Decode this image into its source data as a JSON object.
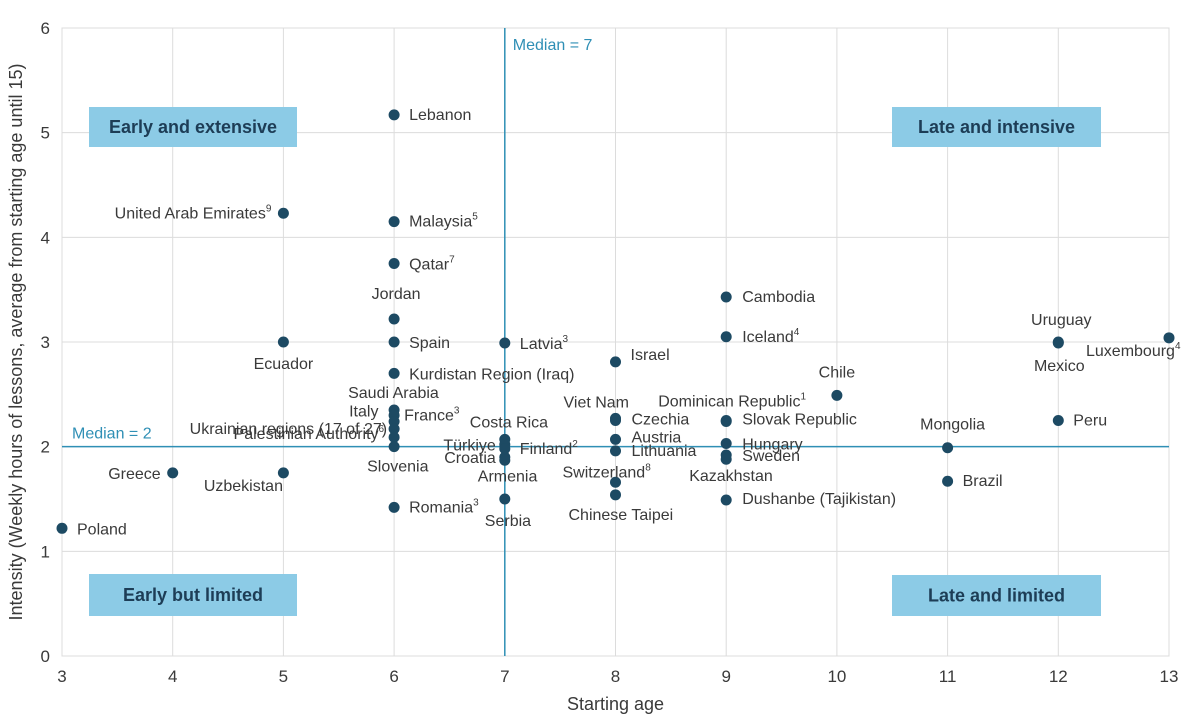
{
  "chart_data": {
    "type": "scatter",
    "xlabel": "Starting age",
    "ylabel": "Intensity (Weekly hours of lessons, average from starting age until 15)",
    "xlim": [
      3,
      13
    ],
    "ylim": [
      0,
      6
    ],
    "xticks": [
      3,
      4,
      5,
      6,
      7,
      8,
      9,
      10,
      11,
      12,
      13
    ],
    "yticks": [
      0,
      1,
      2,
      3,
      4,
      5,
      6
    ],
    "grid": true,
    "colors": {
      "point": "#1d4a63",
      "median_line": "#2f8fb5",
      "quadrant_box": "#8ccbe6",
      "grid": "#dcdcdc"
    },
    "medians": [
      {
        "axis": "x",
        "value": 7,
        "label": "Median = 7"
      },
      {
        "axis": "y",
        "value": 2,
        "label": "Median = 2"
      }
    ],
    "quadrants": [
      {
        "label": "Early and extensive",
        "position": "top-left"
      },
      {
        "label": "Late and intensive",
        "position": "top-right"
      },
      {
        "label": "Early but limited",
        "position": "bottom-left"
      },
      {
        "label": "Late and limited",
        "position": "bottom-right"
      }
    ],
    "points": [
      {
        "label": "Poland",
        "sup": "",
        "x": 3,
        "y": 1.22
      },
      {
        "label": "Greece",
        "sup": "",
        "x": 4,
        "y": 1.75
      },
      {
        "label": "United Arab Emirates",
        "sup": "9",
        "x": 5,
        "y": 4.23
      },
      {
        "label": "Ecuador",
        "sup": "",
        "x": 5,
        "y": 3.0
      },
      {
        "label": "Uzbekistan",
        "sup": "",
        "x": 5,
        "y": 1.75
      },
      {
        "label": "Lebanon",
        "sup": "",
        "x": 6,
        "y": 5.17
      },
      {
        "label": "Malaysia",
        "sup": "5",
        "x": 6,
        "y": 4.15
      },
      {
        "label": "Qatar",
        "sup": "7",
        "x": 6,
        "y": 3.75
      },
      {
        "label": "Jordan",
        "sup": "",
        "x": 6,
        "y": 3.22
      },
      {
        "label": "Spain",
        "sup": "",
        "x": 6,
        "y": 3.0
      },
      {
        "label": "Kurdistan Region (Iraq)",
        "sup": "",
        "x": 6,
        "y": 2.7
      },
      {
        "label": "Saudi Arabia",
        "sup": "",
        "x": 6,
        "y": 2.35
      },
      {
        "label": "Italy",
        "sup": "",
        "x": 6,
        "y": 2.3
      },
      {
        "label": "France",
        "sup": "3",
        "x": 6,
        "y": 2.24
      },
      {
        "label": "Ukrainian regions (17 of 27)",
        "sup": "",
        "x": 6,
        "y": 2.17
      },
      {
        "label": "Palestinian Authority",
        "sup": "6",
        "x": 6,
        "y": 2.09
      },
      {
        "label": "Slovenia",
        "sup": "",
        "x": 6,
        "y": 2.0
      },
      {
        "label": "Romania",
        "sup": "3",
        "x": 6,
        "y": 1.42
      },
      {
        "label": "Latvia",
        "sup": "3",
        "x": 7,
        "y": 2.99
      },
      {
        "label": "Costa Rica",
        "sup": "",
        "x": 7,
        "y": 2.07
      },
      {
        "label": "Türkiye",
        "sup": "",
        "x": 7,
        "y": 2.02
      },
      {
        "label": "Finland",
        "sup": "2",
        "x": 7,
        "y": 1.98
      },
      {
        "label": "Croatia",
        "sup": "",
        "x": 7,
        "y": 1.9
      },
      {
        "label": "Armenia",
        "sup": "",
        "x": 7,
        "y": 1.87
      },
      {
        "label": "Serbia",
        "sup": "",
        "x": 7,
        "y": 1.5
      },
      {
        "label": "Israel",
        "sup": "",
        "x": 8,
        "y": 2.81
      },
      {
        "label": "Viet Nam",
        "sup": "",
        "x": 8,
        "y": 2.27
      },
      {
        "label": "Czechia",
        "sup": "",
        "x": 8,
        "y": 2.25
      },
      {
        "label": "Austria",
        "sup": "",
        "x": 8,
        "y": 2.07
      },
      {
        "label": "Lithuania",
        "sup": "",
        "x": 8,
        "y": 1.96
      },
      {
        "label": "Switzerland",
        "sup": "8",
        "x": 8,
        "y": 1.66
      },
      {
        "label": "Chinese Taipei",
        "sup": "",
        "x": 8,
        "y": 1.54
      },
      {
        "label": "Cambodia",
        "sup": "",
        "x": 9,
        "y": 3.43
      },
      {
        "label": "Iceland",
        "sup": "4",
        "x": 9,
        "y": 3.05
      },
      {
        "label": "Dominican Republic",
        "sup": "1",
        "x": 9,
        "y": 2.25
      },
      {
        "label": "Slovak Republic",
        "sup": "",
        "x": 9,
        "y": 2.24
      },
      {
        "label": "Hungary",
        "sup": "",
        "x": 9,
        "y": 2.03
      },
      {
        "label": "Sweden",
        "sup": "",
        "x": 9,
        "y": 1.92
      },
      {
        "label": "Kazakhstan",
        "sup": "",
        "x": 9,
        "y": 1.88
      },
      {
        "label": "Dushanbe (Tajikistan)",
        "sup": "",
        "x": 9,
        "y": 1.49
      },
      {
        "label": "Chile",
        "sup": "",
        "x": 10,
        "y": 2.49
      },
      {
        "label": "Mongolia",
        "sup": "",
        "x": 11,
        "y": 1.99
      },
      {
        "label": "Brazil",
        "sup": "",
        "x": 11,
        "y": 1.67
      },
      {
        "label": "Uruguay",
        "sup": "",
        "x": 12,
        "y": 3.0
      },
      {
        "label": "Mexico",
        "sup": "",
        "x": 12,
        "y": 2.99
      },
      {
        "label": "Peru",
        "sup": "",
        "x": 12,
        "y": 2.25
      },
      {
        "label": "Luxembourg",
        "sup": "4",
        "x": 13,
        "y": 3.04
      }
    ]
  }
}
